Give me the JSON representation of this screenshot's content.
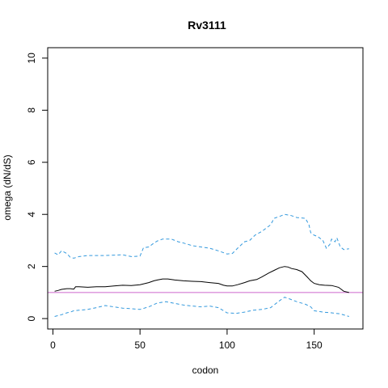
{
  "chart_data": {
    "type": "line",
    "title": "Rv3111",
    "xlabel": "codon",
    "ylabel": "omega (dN/dS)",
    "xlim": [
      -3,
      178
    ],
    "ylim": [
      -0.4,
      10.4
    ],
    "xticks": [
      0,
      50,
      100,
      150
    ],
    "yticks": [
      0,
      2,
      4,
      6,
      8,
      10
    ],
    "grid": false,
    "reference_line": {
      "y": 1,
      "color": "#cc66cc"
    },
    "series": [
      {
        "role": "estimate",
        "color": "#000000",
        "style": "solid",
        "x": [
          1,
          3,
          5,
          8,
          10,
          12,
          13,
          15,
          20,
          25,
          30,
          35,
          40,
          45,
          50,
          55,
          58,
          60,
          63,
          66,
          70,
          75,
          80,
          85,
          90,
          95,
          98,
          100,
          103,
          106,
          110,
          113,
          117,
          120,
          124,
          127,
          130,
          133,
          135,
          137,
          140,
          143,
          146,
          148,
          150,
          153,
          156,
          160,
          164,
          167,
          170
        ],
        "y": [
          1.05,
          1.08,
          1.12,
          1.15,
          1.15,
          1.13,
          1.22,
          1.22,
          1.2,
          1.22,
          1.22,
          1.25,
          1.28,
          1.27,
          1.3,
          1.38,
          1.45,
          1.48,
          1.52,
          1.52,
          1.48,
          1.45,
          1.43,
          1.42,
          1.38,
          1.35,
          1.28,
          1.25,
          1.25,
          1.3,
          1.38,
          1.45,
          1.5,
          1.6,
          1.75,
          1.85,
          1.95,
          2.0,
          1.98,
          1.92,
          1.88,
          1.8,
          1.6,
          1.45,
          1.35,
          1.3,
          1.28,
          1.27,
          1.2,
          1.05,
          1.0
        ]
      },
      {
        "role": "upper-bound",
        "color": "#3399dd",
        "style": "dashed",
        "x": [
          1,
          3,
          5,
          8,
          10,
          12,
          15,
          20,
          30,
          40,
          45,
          50,
          52,
          55,
          58,
          60,
          63,
          68,
          72,
          75,
          80,
          85,
          90,
          95,
          100,
          103,
          106,
          110,
          113,
          116,
          120,
          125,
          127,
          130,
          133,
          137,
          140,
          145,
          147,
          148,
          150,
          152,
          155,
          157,
          159,
          160,
          162,
          163,
          165,
          167,
          170
        ],
        "y": [
          2.52,
          2.45,
          2.6,
          2.5,
          2.35,
          2.32,
          2.38,
          2.42,
          2.42,
          2.45,
          2.38,
          2.4,
          2.72,
          2.75,
          2.9,
          2.98,
          3.05,
          3.05,
          2.95,
          2.9,
          2.8,
          2.75,
          2.7,
          2.6,
          2.48,
          2.5,
          2.7,
          2.95,
          3.0,
          3.2,
          3.35,
          3.6,
          3.85,
          3.92,
          4.0,
          3.95,
          3.88,
          3.85,
          3.6,
          3.3,
          3.2,
          3.15,
          3.0,
          2.7,
          2.85,
          3.05,
          2.95,
          3.1,
          2.75,
          2.65,
          2.68
        ]
      },
      {
        "role": "lower-bound",
        "color": "#3399dd",
        "style": "dashed",
        "x": [
          1,
          5,
          8,
          10,
          12,
          15,
          20,
          25,
          30,
          35,
          40,
          45,
          50,
          55,
          60,
          65,
          70,
          75,
          80,
          85,
          90,
          95,
          100,
          105,
          110,
          115,
          120,
          125,
          130,
          133,
          136,
          140,
          145,
          148,
          150,
          155,
          160,
          165,
          170
        ],
        "y": [
          0.08,
          0.15,
          0.22,
          0.25,
          0.3,
          0.32,
          0.35,
          0.42,
          0.5,
          0.45,
          0.4,
          0.38,
          0.35,
          0.45,
          0.6,
          0.65,
          0.58,
          0.52,
          0.48,
          0.45,
          0.48,
          0.42,
          0.22,
          0.2,
          0.25,
          0.32,
          0.35,
          0.42,
          0.68,
          0.82,
          0.75,
          0.65,
          0.55,
          0.45,
          0.3,
          0.25,
          0.22,
          0.18,
          0.08
        ]
      }
    ]
  }
}
